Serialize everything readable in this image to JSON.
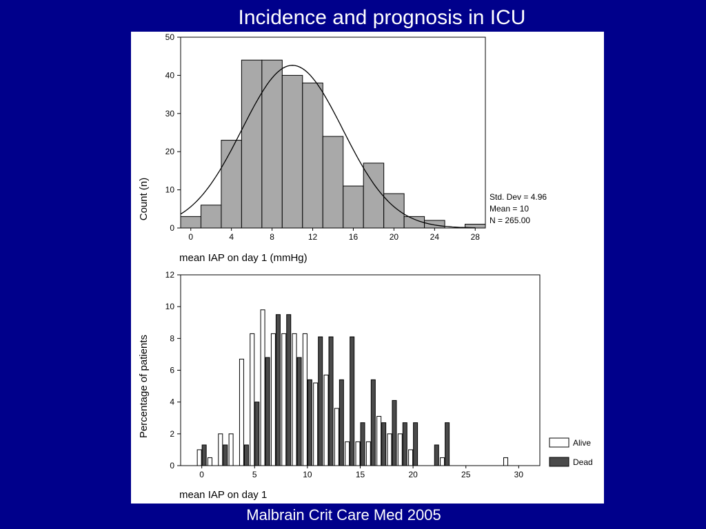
{
  "slide": {
    "title": "Incidence and prognosis in ICU",
    "citation": "Malbrain Crit Care Med 2005"
  },
  "chart_data": [
    {
      "type": "bar",
      "subtype": "histogram",
      "bin_edges": [
        0,
        2,
        4,
        6,
        8,
        10,
        12,
        14,
        16,
        18,
        20,
        22,
        24,
        26,
        28
      ],
      "values": [
        3,
        6,
        23,
        44,
        44,
        40,
        38,
        24,
        11,
        17,
        9,
        3,
        2,
        0,
        1
      ],
      "normal_curve": {
        "mean": 10,
        "sd": 4.96,
        "n": 265,
        "bin_width": 2
      },
      "xlabel": "mean IAP on day 1 (mmHg)",
      "ylabel": "Count (n)",
      "xlim": [
        -1,
        29
      ],
      "ylim": [
        0,
        50
      ],
      "x_ticks": [
        "0",
        "4",
        "8",
        "12",
        "16",
        "20",
        "24",
        "28"
      ],
      "y_ticks": [
        "0",
        "10",
        "20",
        "30",
        "40",
        "50"
      ],
      "stats": [
        "Std. Dev = 4.96",
        "Mean = 10",
        "N = 265.00"
      ],
      "colors": {
        "bar": "#a9a9a9",
        "edge": "#000000"
      },
      "grid": false
    },
    {
      "type": "bar",
      "subtype": "grouped",
      "x": [
        0,
        1,
        2,
        3,
        4,
        5,
        6,
        7,
        8,
        9,
        10,
        11,
        12,
        13,
        14,
        15,
        16,
        17,
        18,
        19,
        20,
        21,
        22,
        23,
        24,
        25,
        26,
        27,
        28,
        29,
        30
      ],
      "series": [
        {
          "name": "Alive",
          "values": [
            1.0,
            0.5,
            2.0,
            2.0,
            6.7,
            8.3,
            9.8,
            8.3,
            8.3,
            8.3,
            8.3,
            5.2,
            5.7,
            3.6,
            1.5,
            1.5,
            1.5,
            3.1,
            2.0,
            2.0,
            1.0,
            0,
            0,
            0.5,
            0,
            0,
            0,
            0,
            0,
            0.5,
            0
          ]
        },
        {
          "name": "Dead",
          "values": [
            1.3,
            0,
            1.3,
            0,
            1.3,
            4.0,
            6.8,
            9.5,
            9.5,
            6.8,
            5.4,
            8.1,
            8.1,
            5.4,
            8.1,
            2.7,
            5.4,
            2.7,
            4.1,
            2.7,
            2.7,
            0,
            1.3,
            2.7,
            0,
            0,
            0,
            0,
            0,
            0,
            0
          ]
        }
      ],
      "xlabel": "mean IAP on day 1",
      "ylabel": "Percentage of patients",
      "xlim": [
        -2,
        32
      ],
      "ylim": [
        0,
        12
      ],
      "x_ticks": [
        "0",
        "5",
        "10",
        "15",
        "20",
        "25",
        "30"
      ],
      "y_ticks": [
        "0",
        "2",
        "4",
        "6",
        "8",
        "10",
        "12"
      ],
      "legend": [
        "Alive",
        "Dead"
      ],
      "legend_position": "bottom-right",
      "colors": {
        "alive": "#ffffff",
        "dead": "#4a4a4a",
        "edge": "#000000"
      },
      "grid": false
    }
  ]
}
